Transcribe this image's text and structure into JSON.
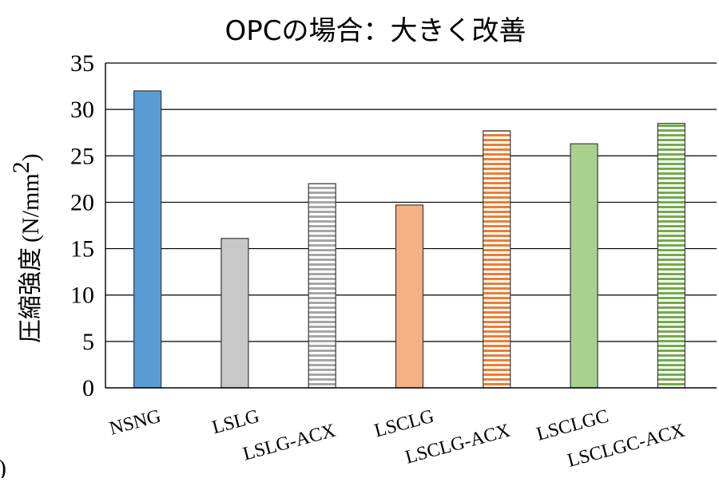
{
  "chart_data": {
    "type": "bar",
    "title": "OPCの場合：大きく改善",
    "ylabel_jp": "圧縮強度",
    "ylabel_unit": "(N/mm",
    "ylabel_sup": "2",
    "ylabel_close": ")",
    "ylim": [
      0,
      35
    ],
    "yticks": [
      "0",
      "5",
      "10",
      "15",
      "20",
      "25",
      "30",
      "35"
    ],
    "grid": true,
    "categories": [
      "NSNG",
      "LSLG",
      "LSLG-ACX",
      "LSCLG",
      "LSCLG-ACX",
      "LSCLGC",
      "LSCLGC-ACX"
    ],
    "values": [
      32.0,
      16.1,
      22.0,
      19.7,
      27.7,
      26.3,
      28.5
    ],
    "colors": [
      "#5b9bd5",
      "#c8c8c8",
      "#a6a6a6",
      "#f4b183",
      "#ed7d31",
      "#a9d18e",
      "#70ad47"
    ],
    "hatched": [
      false,
      false,
      true,
      false,
      true,
      false,
      true
    ],
    "stray_glyph": ")"
  }
}
